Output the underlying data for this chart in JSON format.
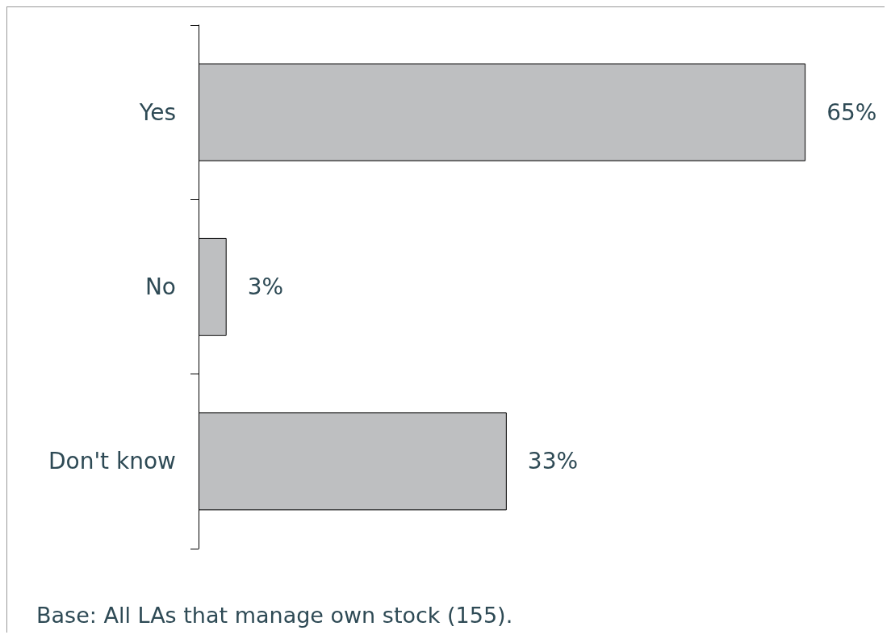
{
  "chart_data": {
    "type": "bar",
    "orientation": "horizontal",
    "categories": [
      "Yes",
      "No",
      "Don't know"
    ],
    "values": [
      65,
      3,
      33
    ],
    "value_labels": [
      "65%",
      "3%",
      "33%"
    ],
    "color": "#bebfc1",
    "annotations": [
      "Base: All LAs that manage own stock (155)."
    ]
  }
}
